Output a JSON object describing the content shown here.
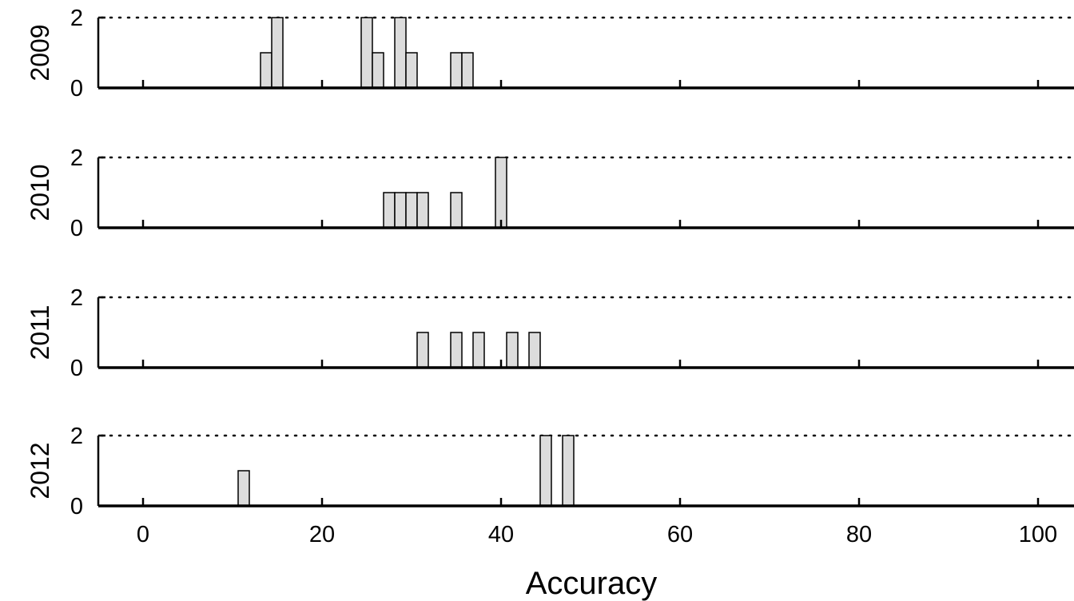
{
  "chart_data": {
    "type": "bar",
    "xlabel": "Accuracy",
    "xlim": [
      -5,
      104.8
    ],
    "xticks": [
      0,
      20,
      40,
      60,
      80,
      100
    ],
    "xtick_labels": [
      "0",
      "20",
      "40",
      "60",
      "80",
      "100"
    ],
    "ylim": [
      0,
      2
    ],
    "yticks": [
      0,
      2
    ],
    "ytick_labels": [
      "0",
      "2"
    ],
    "bin_width": 1.25,
    "bar_color": "#dcdcdc",
    "bar_edge_color": "#000000",
    "grid": "dotted line at y=2",
    "panels": [
      {
        "ylabel": "2009",
        "bars": [
          {
            "x": 13.75,
            "value": 1
          },
          {
            "x": 15.0,
            "value": 2
          },
          {
            "x": 25.0,
            "value": 2
          },
          {
            "x": 26.25,
            "value": 1
          },
          {
            "x": 28.75,
            "value": 2
          },
          {
            "x": 30.0,
            "value": 1
          },
          {
            "x": 35.0,
            "value": 1
          },
          {
            "x": 36.25,
            "value": 1
          }
        ]
      },
      {
        "ylabel": "2010",
        "bars": [
          {
            "x": 27.5,
            "value": 1
          },
          {
            "x": 28.75,
            "value": 1
          },
          {
            "x": 30.0,
            "value": 1
          },
          {
            "x": 31.25,
            "value": 1
          },
          {
            "x": 35.0,
            "value": 1
          },
          {
            "x": 40.0,
            "value": 2
          }
        ]
      },
      {
        "ylabel": "2011",
        "bars": [
          {
            "x": 31.25,
            "value": 1
          },
          {
            "x": 35.0,
            "value": 1
          },
          {
            "x": 37.5,
            "value": 1
          },
          {
            "x": 41.25,
            "value": 1
          },
          {
            "x": 43.75,
            "value": 1
          }
        ]
      },
      {
        "ylabel": "2012",
        "bars": [
          {
            "x": 11.25,
            "value": 1
          },
          {
            "x": 45.0,
            "value": 2
          },
          {
            "x": 47.5,
            "value": 2
          }
        ]
      }
    ]
  }
}
